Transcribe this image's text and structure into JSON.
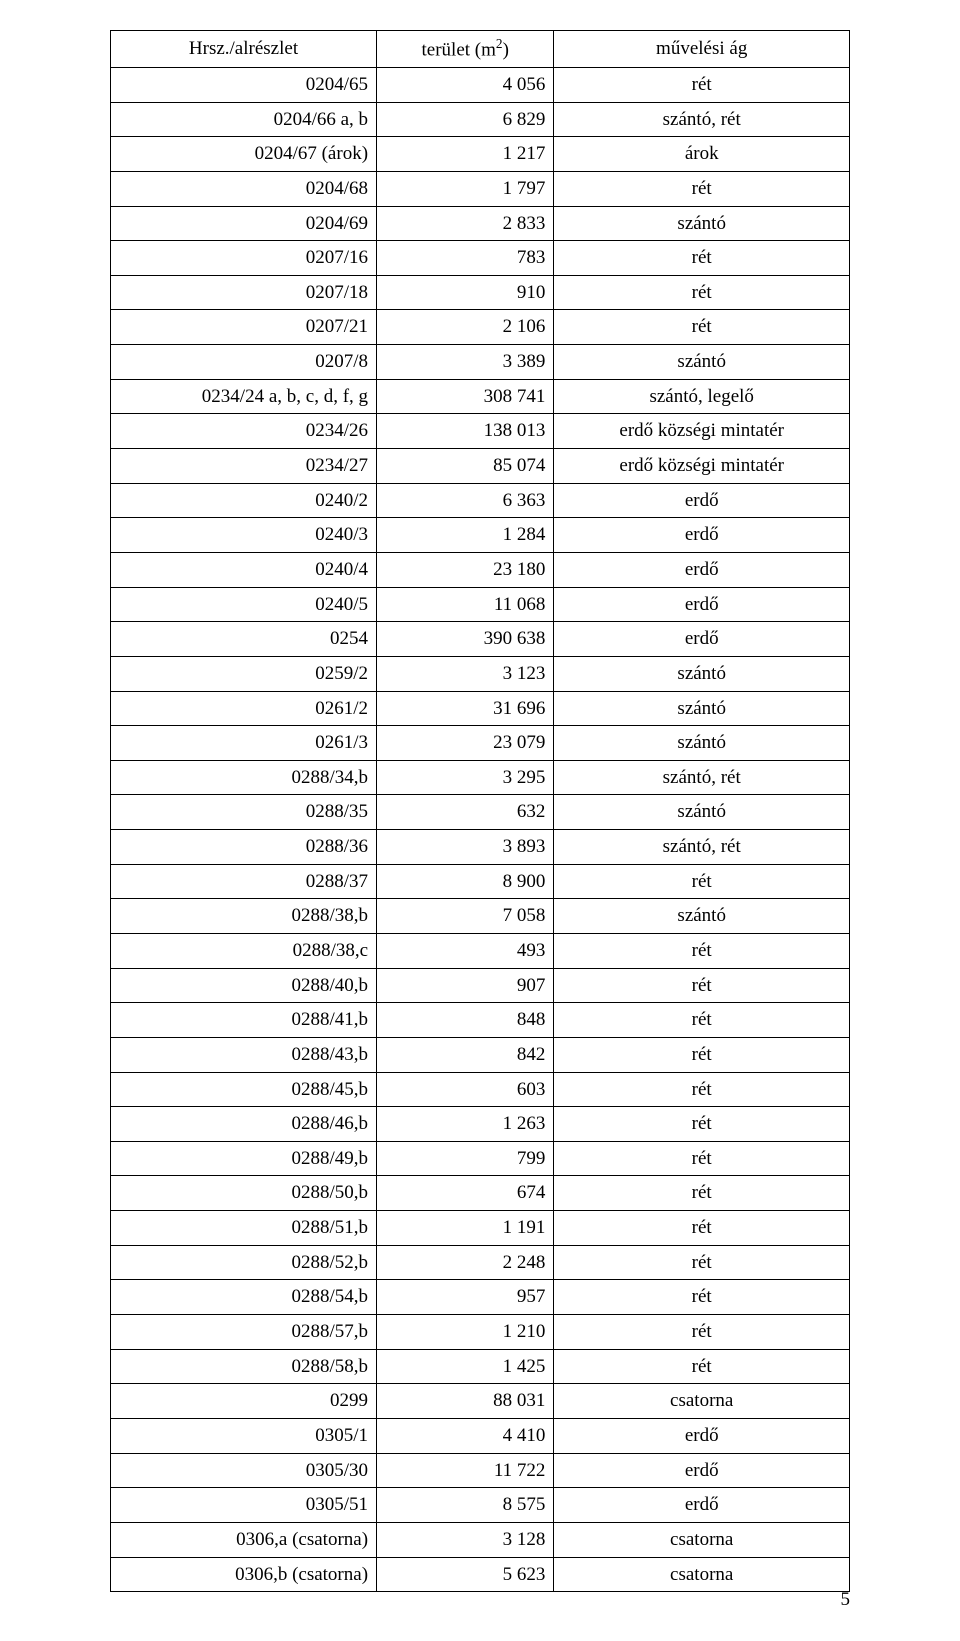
{
  "page_number": "5",
  "table": {
    "headers": {
      "col1": "Hrsz./alrészlet",
      "col2_html": "terület (m<sup>2</sup>)",
      "col3": "művelési ág"
    },
    "rows": [
      {
        "c1": "0204/65",
        "c2": "4 056",
        "c3": "rét"
      },
      {
        "c1": "0204/66 a, b",
        "c2": "6 829",
        "c3": "szántó, rét"
      },
      {
        "c1": "0204/67 (árok)",
        "c2": "1 217",
        "c3": "árok"
      },
      {
        "c1": "0204/68",
        "c2": "1 797",
        "c3": "rét"
      },
      {
        "c1": "0204/69",
        "c2": "2 833",
        "c3": "szántó"
      },
      {
        "c1": "0207/16",
        "c2": "783",
        "c3": "rét"
      },
      {
        "c1": "0207/18",
        "c2": "910",
        "c3": "rét"
      },
      {
        "c1": "0207/21",
        "c2": "2 106",
        "c3": "rét"
      },
      {
        "c1": "0207/8",
        "c2": "3 389",
        "c3": "szántó"
      },
      {
        "c1": "0234/24 a, b, c, d, f, g",
        "c2": "308 741",
        "c3": "szántó, legelő"
      },
      {
        "c1": "0234/26",
        "c2": "138 013",
        "c3": "erdő községi mintatér"
      },
      {
        "c1": "0234/27",
        "c2": "85 074",
        "c3": "erdő községi mintatér"
      },
      {
        "c1": "0240/2",
        "c2": "6 363",
        "c3": "erdő"
      },
      {
        "c1": "0240/3",
        "c2": "1 284",
        "c3": "erdő"
      },
      {
        "c1": "0240/4",
        "c2": "23 180",
        "c3": "erdő"
      },
      {
        "c1": "0240/5",
        "c2": "11 068",
        "c3": "erdő"
      },
      {
        "c1": "0254",
        "c2": "390 638",
        "c3": "erdő"
      },
      {
        "c1": "0259/2",
        "c2": "3 123",
        "c3": "szántó"
      },
      {
        "c1": "0261/2",
        "c2": "31 696",
        "c3": "szántó"
      },
      {
        "c1": "0261/3",
        "c2": "23 079",
        "c3": "szántó"
      },
      {
        "c1": "0288/34,b",
        "c2": "3 295",
        "c3": "szántó, rét"
      },
      {
        "c1": "0288/35",
        "c2": "632",
        "c3": "szántó"
      },
      {
        "c1": "0288/36",
        "c2": "3 893",
        "c3": "szántó, rét"
      },
      {
        "c1": "0288/37",
        "c2": "8 900",
        "c3": "rét"
      },
      {
        "c1": "0288/38,b",
        "c2": "7 058",
        "c3": "szántó"
      },
      {
        "c1": "0288/38,c",
        "c2": "493",
        "c3": "rét"
      },
      {
        "c1": "0288/40,b",
        "c2": "907",
        "c3": "rét"
      },
      {
        "c1": "0288/41,b",
        "c2": "848",
        "c3": "rét"
      },
      {
        "c1": "0288/43,b",
        "c2": "842",
        "c3": "rét"
      },
      {
        "c1": "0288/45,b",
        "c2": "603",
        "c3": "rét"
      },
      {
        "c1": "0288/46,b",
        "c2": "1 263",
        "c3": "rét"
      },
      {
        "c1": "0288/49,b",
        "c2": "799",
        "c3": "rét"
      },
      {
        "c1": "0288/50,b",
        "c2": "674",
        "c3": "rét"
      },
      {
        "c1": "0288/51,b",
        "c2": "1 191",
        "c3": "rét"
      },
      {
        "c1": "0288/52,b",
        "c2": "2 248",
        "c3": "rét"
      },
      {
        "c1": "0288/54,b",
        "c2": "957",
        "c3": "rét"
      },
      {
        "c1": "0288/57,b",
        "c2": "1 210",
        "c3": "rét"
      },
      {
        "c1": "0288/58,b",
        "c2": "1 425",
        "c3": "rét"
      },
      {
        "c1": "0299",
        "c2": "88 031",
        "c3": "csatorna"
      },
      {
        "c1": "0305/1",
        "c2": "4 410",
        "c3": "erdő"
      },
      {
        "c1": "0305/30",
        "c2": "11 722",
        "c3": "erdő"
      },
      {
        "c1": "0305/51",
        "c2": "8 575",
        "c3": "erdő"
      },
      {
        "c1": "0306,a (csatorna)",
        "c2": "3 128",
        "c3": "csatorna"
      },
      {
        "c1": "0306,b (csatorna)",
        "c2": "5 623",
        "c3": "csatorna"
      }
    ]
  }
}
